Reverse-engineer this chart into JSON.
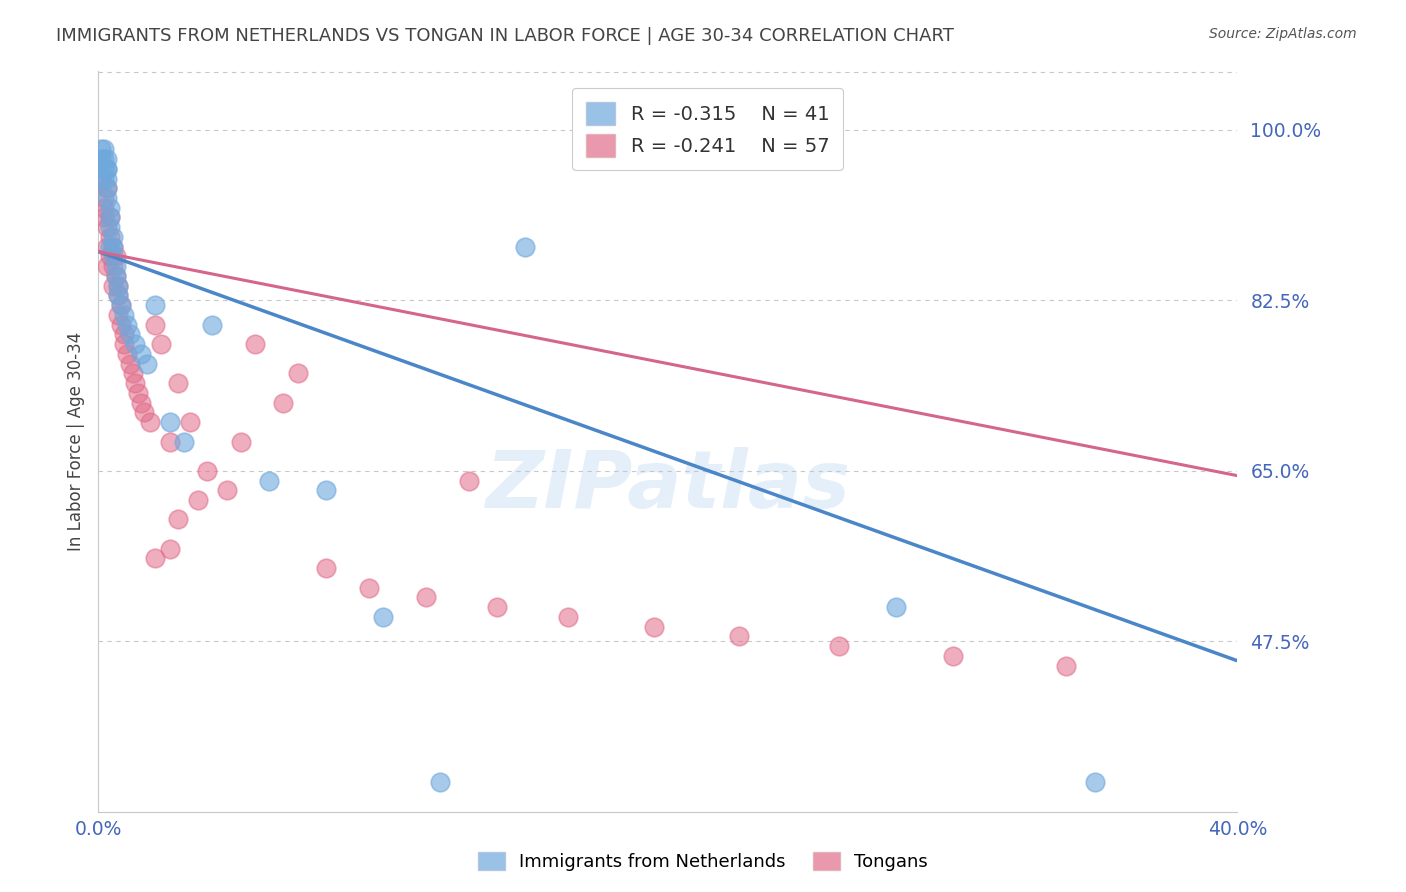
{
  "title": "IMMIGRANTS FROM NETHERLANDS VS TONGAN IN LABOR FORCE | AGE 30-34 CORRELATION CHART",
  "source": "Source: ZipAtlas.com",
  "ylabel": "In Labor Force | Age 30-34",
  "xlim": [
    0.0,
    0.4
  ],
  "ylim": [
    0.3,
    1.06
  ],
  "yticks": [
    0.475,
    0.65,
    0.825,
    1.0
  ],
  "ytick_labels": [
    "47.5%",
    "65.0%",
    "82.5%",
    "100.0%"
  ],
  "netherlands_R": -0.315,
  "netherlands_N": 41,
  "tongan_R": -0.241,
  "tongan_N": 57,
  "netherlands_color": "#6fa8dc",
  "tongan_color": "#e06c8a",
  "nl_line_color": "#4a86c8",
  "tg_line_color": "#d4668a",
  "background_color": "#ffffff",
  "grid_color": "#c8c8c8",
  "axis_label_color": "#4466bb",
  "title_color": "#444444",
  "nl_x": [
    0.001,
    0.001,
    0.002,
    0.002,
    0.002,
    0.002,
    0.003,
    0.003,
    0.003,
    0.003,
    0.003,
    0.003,
    0.004,
    0.004,
    0.004,
    0.004,
    0.005,
    0.005,
    0.005,
    0.006,
    0.006,
    0.007,
    0.007,
    0.008,
    0.009,
    0.01,
    0.011,
    0.013,
    0.015,
    0.017,
    0.02,
    0.025,
    0.03,
    0.04,
    0.06,
    0.08,
    0.1,
    0.12,
    0.15,
    0.28,
    0.35
  ],
  "nl_y": [
    0.98,
    0.97,
    0.97,
    0.96,
    0.95,
    0.98,
    0.96,
    0.97,
    0.95,
    0.94,
    0.93,
    0.96,
    0.92,
    0.91,
    0.9,
    0.88,
    0.89,
    0.88,
    0.87,
    0.86,
    0.85,
    0.84,
    0.83,
    0.82,
    0.81,
    0.8,
    0.79,
    0.78,
    0.77,
    0.76,
    0.82,
    0.7,
    0.68,
    0.8,
    0.64,
    0.63,
    0.5,
    0.33,
    0.88,
    0.51,
    0.33
  ],
  "tg_x": [
    0.001,
    0.002,
    0.002,
    0.002,
    0.003,
    0.003,
    0.003,
    0.003,
    0.004,
    0.004,
    0.004,
    0.005,
    0.005,
    0.005,
    0.006,
    0.006,
    0.007,
    0.007,
    0.007,
    0.008,
    0.008,
    0.009,
    0.009,
    0.01,
    0.011,
    0.012,
    0.013,
    0.014,
    0.015,
    0.016,
    0.018,
    0.02,
    0.022,
    0.025,
    0.028,
    0.032,
    0.038,
    0.045,
    0.055,
    0.065,
    0.08,
    0.095,
    0.115,
    0.14,
    0.165,
    0.195,
    0.225,
    0.26,
    0.3,
    0.34,
    0.13,
    0.07,
    0.05,
    0.035,
    0.028,
    0.025,
    0.02
  ],
  "tg_y": [
    0.95,
    0.93,
    0.92,
    0.91,
    0.94,
    0.9,
    0.88,
    0.86,
    0.91,
    0.89,
    0.87,
    0.88,
    0.86,
    0.84,
    0.87,
    0.85,
    0.84,
    0.83,
    0.81,
    0.82,
    0.8,
    0.79,
    0.78,
    0.77,
    0.76,
    0.75,
    0.74,
    0.73,
    0.72,
    0.71,
    0.7,
    0.8,
    0.78,
    0.68,
    0.74,
    0.7,
    0.65,
    0.63,
    0.78,
    0.72,
    0.55,
    0.53,
    0.52,
    0.51,
    0.5,
    0.49,
    0.48,
    0.47,
    0.46,
    0.45,
    0.64,
    0.75,
    0.68,
    0.62,
    0.6,
    0.57,
    0.56
  ]
}
